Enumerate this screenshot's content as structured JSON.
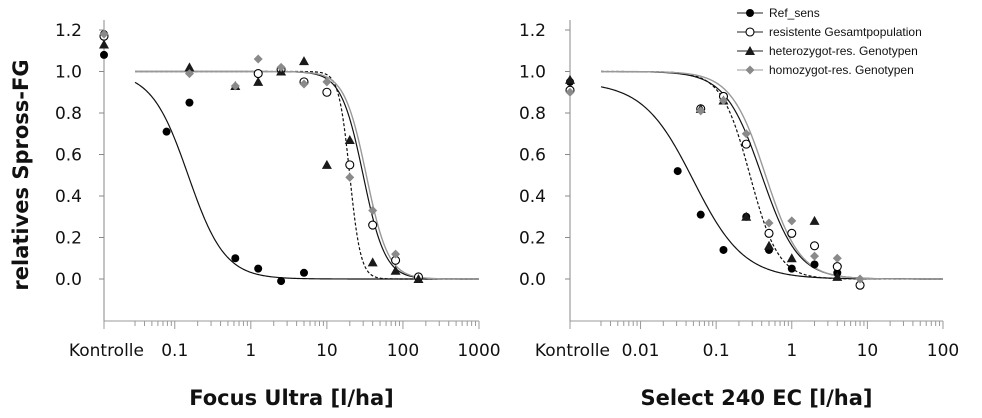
{
  "ylabel": "relatives Spross-FG",
  "legend": [
    {
      "label": "Ref_sens",
      "marker": "circle-filled",
      "color": "#000000",
      "line": "solid"
    },
    {
      "label": "resistente Gesamtpopulation",
      "marker": "circle-open",
      "color": "#000000",
      "line": "solid"
    },
    {
      "label": "heterozygot-res. Genotypen",
      "marker": "triangle",
      "color": "#1a1a1a",
      "line": "solid"
    },
    {
      "label": "homozygot-res. Genotypen",
      "marker": "diamond",
      "color": "#888888",
      "line": "solid-gray"
    }
  ],
  "chart_data": [
    {
      "type": "scatter",
      "xlabel": "Focus Ultra [l/ha]",
      "ylabel": "relatives Spross-FG",
      "xscale": "log",
      "control_label": "Kontrolle",
      "xlim": [
        0.03,
        1000
      ],
      "ylim": [
        -0.2,
        1.2
      ],
      "y_ticks": [
        "1.2",
        "1.0",
        "0.8",
        "0.6",
        "0.4",
        "0.2",
        "0.0"
      ],
      "y_tick_values": [
        1.2,
        1.0,
        0.8,
        0.6,
        0.4,
        0.2,
        0.0
      ],
      "x_tick_labels": [
        "Kontrolle",
        "0.1",
        "1",
        "10",
        "100",
        "1000"
      ],
      "x_tick_values": [
        null,
        0.1,
        1,
        10,
        100,
        1000
      ],
      "series": [
        {
          "name": "Ref_sens",
          "marker": "circle-filled",
          "points": [
            [
              "Kontrolle",
              1.08
            ],
            [
              "Kontrolle",
              1.18
            ],
            [
              0.078,
              0.71
            ],
            [
              0.156,
              0.85
            ],
            [
              0.625,
              0.1
            ],
            [
              1.25,
              0.05
            ],
            [
              2.5,
              -0.01
            ],
            [
              5,
              0.03
            ]
          ],
          "curve": {
            "ed50": 0.15,
            "slope": 1.8,
            "upper": 1.0,
            "style": "solid"
          }
        },
        {
          "name": "resistente Gesamtpopulation",
          "marker": "circle-open",
          "points": [
            [
              "Kontrolle",
              1.17
            ],
            [
              1.25,
              0.99
            ],
            [
              2.5,
              1.01
            ],
            [
              5,
              0.95
            ],
            [
              10,
              0.9
            ],
            [
              20,
              0.55
            ],
            [
              40,
              0.26
            ],
            [
              80,
              0.09
            ],
            [
              160,
              0.01
            ]
          ],
          "curve": {
            "ed50": 30,
            "slope": 3.0,
            "upper": 1.0,
            "style": "solid"
          }
        },
        {
          "name": "heterozygot-res. Genotypen",
          "marker": "triangle",
          "points": [
            [
              "Kontrolle",
              1.13
            ],
            [
              0.156,
              1.02
            ],
            [
              0.625,
              0.93
            ],
            [
              1.25,
              0.95
            ],
            [
              2.5,
              1.0
            ],
            [
              5,
              1.05
            ],
            [
              10,
              0.55
            ],
            [
              20,
              0.67
            ],
            [
              40,
              0.08
            ],
            [
              80,
              0.04
            ],
            [
              160,
              0.0
            ]
          ],
          "curve": {
            "ed50": 20,
            "slope": 6.0,
            "upper": 1.0,
            "style": "dotted"
          }
        },
        {
          "name": "homozygot-res. Genotypen",
          "marker": "diamond",
          "points": [
            [
              "Kontrolle",
              1.18
            ],
            [
              0.156,
              0.99
            ],
            [
              0.625,
              0.93
            ],
            [
              1.25,
              1.06
            ],
            [
              2.5,
              1.02
            ],
            [
              5,
              0.94
            ],
            [
              10,
              0.95
            ],
            [
              20,
              0.49
            ],
            [
              40,
              0.33
            ],
            [
              80,
              0.12
            ]
          ],
          "curve": {
            "ed50": 33,
            "slope": 3.0,
            "upper": 1.0,
            "style": "gray"
          }
        }
      ]
    },
    {
      "type": "scatter",
      "xlabel": "Select 240 EC [l/ha]",
      "ylabel": "",
      "xscale": "log",
      "control_label": "Kontrolle",
      "xlim": [
        0.003,
        100
      ],
      "ylim": [
        -0.2,
        1.2
      ],
      "y_ticks": [
        "1.2",
        "1.0",
        "0.8",
        "0.6",
        "0.4",
        "0.2",
        "0.0"
      ],
      "y_tick_values": [
        1.2,
        1.0,
        0.8,
        0.6,
        0.4,
        0.2,
        0.0
      ],
      "x_tick_labels": [
        "Kontrolle",
        "0.01",
        "0.1",
        "1",
        "10",
        "100"
      ],
      "x_tick_values": [
        null,
        0.01,
        0.1,
        1,
        10,
        100
      ],
      "series": [
        {
          "name": "Ref_sens",
          "marker": "circle-filled",
          "points": [
            [
              "Kontrolle",
              0.95
            ],
            [
              0.031,
              0.52
            ],
            [
              0.0625,
              0.31
            ],
            [
              0.125,
              0.14
            ],
            [
              0.25,
              0.3
            ],
            [
              0.5,
              0.14
            ],
            [
              1,
              0.05
            ],
            [
              2,
              0.07
            ],
            [
              4,
              0.03
            ]
          ],
          "curve": {
            "ed50": 0.05,
            "slope": 1.3,
            "upper": 0.95,
            "style": "solid"
          }
        },
        {
          "name": "resistente Gesamtpopulation",
          "marker": "circle-open",
          "points": [
            [
              "Kontrolle",
              0.91
            ],
            [
              0.0625,
              0.82
            ],
            [
              0.125,
              0.88
            ],
            [
              0.25,
              0.65
            ],
            [
              0.5,
              0.22
            ],
            [
              1,
              0.22
            ],
            [
              2,
              0.16
            ],
            [
              4,
              0.06
            ],
            [
              8,
              -0.03
            ]
          ],
          "curve": {
            "ed50": 0.4,
            "slope": 1.8,
            "upper": 1.0,
            "style": "solid"
          }
        },
        {
          "name": "heterozygot-res. Genotypen",
          "marker": "triangle",
          "points": [
            [
              "Kontrolle",
              0.96
            ],
            [
              0.0625,
              0.82
            ],
            [
              0.125,
              0.86
            ],
            [
              0.25,
              0.3
            ],
            [
              0.5,
              0.16
            ],
            [
              1,
              0.1
            ],
            [
              2,
              0.28
            ],
            [
              4,
              0.01
            ]
          ],
          "curve": {
            "ed50": 0.28,
            "slope": 2.3,
            "upper": 1.0,
            "style": "dotted"
          }
        },
        {
          "name": "homozygot-res. Genotypen",
          "marker": "diamond",
          "points": [
            [
              "Kontrolle",
              0.9
            ],
            [
              0.0625,
              0.81
            ],
            [
              0.125,
              0.86
            ],
            [
              0.25,
              0.7
            ],
            [
              0.5,
              0.27
            ],
            [
              1,
              0.28
            ],
            [
              2,
              0.11
            ],
            [
              4,
              0.1
            ],
            [
              8,
              0.0
            ]
          ],
          "curve": {
            "ed50": 0.45,
            "slope": 1.9,
            "upper": 1.0,
            "style": "gray"
          }
        }
      ]
    }
  ]
}
